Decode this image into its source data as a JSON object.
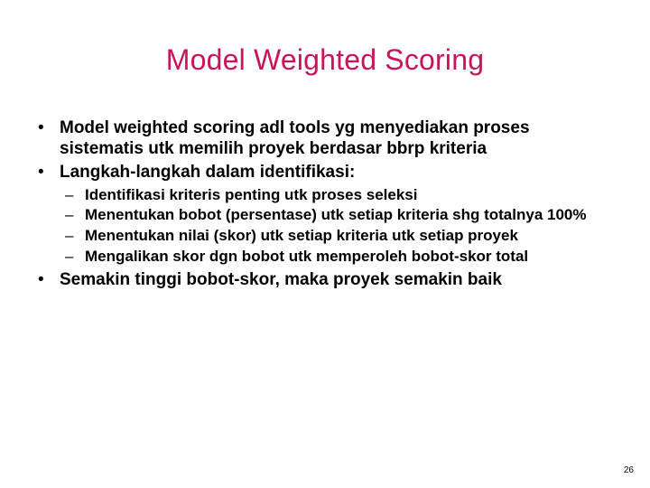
{
  "title_color": "#c9145a",
  "text_color": "#000000",
  "background_color": "#ffffff",
  "title": "Model Weighted Scoring",
  "bullets": [
    {
      "text": "Model weighted scoring adl tools yg menyediakan proses sistematis utk memilih proyek berdasar bbrp kriteria",
      "sub": []
    },
    {
      "text": "Langkah-langkah dalam identifikasi:",
      "sub": [
        "Identifikasi kriteris penting utk proses seleksi",
        "Menentukan bobot (persentase) utk setiap kriteria shg totalnya 100%",
        "Menentukan nilai (skor) utk setiap kriteria utk setiap proyek",
        "Mengalikan skor dgn bobot utk memperoleh bobot-skor total"
      ]
    },
    {
      "text": "Semakin tinggi bobot-skor, maka proyek semakin baik",
      "sub": []
    }
  ],
  "page_number": "26"
}
